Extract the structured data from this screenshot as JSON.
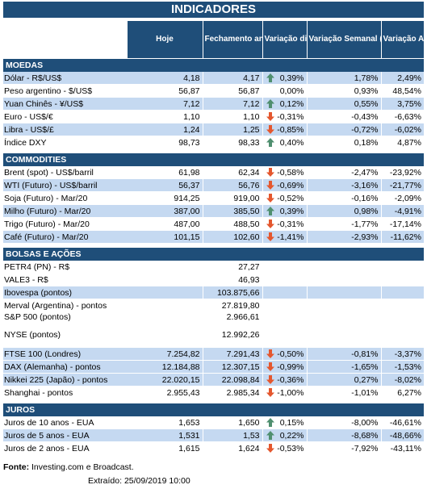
{
  "title": "INDICADORES",
  "header": {
    "hoje": "Hoje",
    "fechamento": "Fechamento anterior",
    "var_diaria": "Variação diária (%)",
    "var_semanal": "Variação Semanal (%)",
    "var_anual": "Variação Anual (%)"
  },
  "colors": {
    "header_bg": "#1f4e79",
    "row_alt": "#c5d9f1",
    "arrow_up": "#4f8f6f",
    "arrow_down": "#e4572e"
  },
  "sections": [
    {
      "name": "MOEDAS",
      "rows": [
        {
          "name": "Dólar - R$/US$",
          "hoje": "4,18",
          "fech": "4,17",
          "dir": "up",
          "vd": "0,39%",
          "vs": "1,78%",
          "va": "2,49%"
        },
        {
          "name": "Peso argentino - $/US$",
          "hoje": "56,87",
          "fech": "56,87",
          "dir": "",
          "vd": "0,00%",
          "vs": "0,93%",
          "va": "48,54%"
        },
        {
          "name": "Yuan Chinês - ¥/US$",
          "hoje": "7,12",
          "fech": "7,12",
          "dir": "up",
          "vd": "0,12%",
          "vs": "0,55%",
          "va": "3,75%"
        },
        {
          "name": "Euro - US$/€",
          "hoje": "1,10",
          "fech": "1,10",
          "dir": "down",
          "vd": "-0,31%",
          "vs": "-0,43%",
          "va": "-6,63%"
        },
        {
          "name": "Libra - US$/£",
          "hoje": "1,24",
          "fech": "1,25",
          "dir": "down",
          "vd": "-0,85%",
          "vs": "-0,72%",
          "va": "-6,02%"
        },
        {
          "name": "Índice DXY",
          "hoje": "98,73",
          "fech": "98,33",
          "dir": "up",
          "vd": "0,40%",
          "vs": "0,18%",
          "va": "4,87%"
        }
      ]
    },
    {
      "name": "COMMODITIES",
      "rows": [
        {
          "name": "Brent (spot) - US$/barril",
          "hoje": "61,98",
          "fech": "62,34",
          "dir": "down",
          "vd": "-0,58%",
          "vs": "-2,47%",
          "va": "-23,92%"
        },
        {
          "name": "WTI (Futuro) - US$/barril",
          "hoje": "56,37",
          "fech": "56,76",
          "dir": "down",
          "vd": "-0,69%",
          "vs": "-3,16%",
          "va": "-21,77%"
        },
        {
          "name": "Soja (Futuro) - Mar/20",
          "hoje": "914,25",
          "fech": "919,00",
          "dir": "down",
          "vd": "-0,52%",
          "vs": "-0,16%",
          "va": "-2,09%"
        },
        {
          "name": "Milho (Futuro) - Mar/20",
          "hoje": "387,00",
          "fech": "385,50",
          "dir": "up",
          "vd": "0,39%",
          "vs": "0,98%",
          "va": "-4,91%"
        },
        {
          "name": "Trigo (Futuro) - Mar/20",
          "hoje": "487,00",
          "fech": "488,50",
          "dir": "down",
          "vd": "-0,31%",
          "vs": "-1,77%",
          "va": "-17,14%"
        },
        {
          "name": "Café (Futuro) - Mar/20",
          "hoje": "101,15",
          "fech": "102,60",
          "dir": "down",
          "vd": "-1,41%",
          "vs": "-2,93%",
          "va": "-11,62%"
        }
      ]
    },
    {
      "name": "BOLSAS E AÇÕES",
      "rows": [
        {
          "name": "PETR4 (PN) - R$",
          "hoje": "",
          "fech": "27,27",
          "dir": "",
          "vd": "",
          "vs": "",
          "va": ""
        },
        {
          "name": "VALE3 - R$",
          "hoje": "",
          "fech": "46,93",
          "dir": "",
          "vd": "",
          "vs": "",
          "va": ""
        },
        {
          "name": "Ibovespa (pontos)",
          "hoje": "",
          "fech": "103.875,66",
          "dir": "",
          "vd": "",
          "vs": "",
          "va": ""
        },
        {
          "name": "Merval (Argentina) - pontos",
          "hoje": "",
          "fech": "27.819,80",
          "dir": "",
          "vd": "",
          "vs": "",
          "va": ""
        },
        {
          "name": "S&P 500 (pontos)",
          "hoje": "",
          "fech": "2.966,61",
          "dir": "",
          "vd": "",
          "vs": "",
          "va": "",
          "tall": true
        },
        {
          "name": "NYSE (pontos)",
          "hoje": "",
          "fech": "12.992,26",
          "dir": "",
          "vd": "",
          "vs": "",
          "va": "",
          "tall": true
        },
        {
          "name": "FTSE 100 (Londres)",
          "hoje": "7.254,82",
          "fech": "7.291,43",
          "dir": "down",
          "vd": "-0,50%",
          "vs": "-0,81%",
          "va": "-3,37%"
        },
        {
          "name": "DAX (Alemanha) - pontos",
          "hoje": "12.184,88",
          "fech": "12.307,15",
          "dir": "down",
          "vd": "-0,99%",
          "vs": "-1,65%",
          "va": "-1,53%"
        },
        {
          "name": "Nikkei 225 (Japão) - pontos",
          "hoje": "22.020,15",
          "fech": "22.098,84",
          "dir": "down",
          "vd": "-0,36%",
          "vs": "0,27%",
          "va": "-8,02%"
        },
        {
          "name": "Shanghai - pontos",
          "hoje": "2.955,43",
          "fech": "2.985,34",
          "dir": "down",
          "vd": "-1,00%",
          "vs": "-1,01%",
          "va": "6,27%"
        }
      ]
    },
    {
      "name": "JUROS",
      "rows": [
        {
          "name": "Juros de 10 anos - EUA",
          "hoje": "1,653",
          "fech": "1,650",
          "dir": "up",
          "vd": "0,15%",
          "vs": "-8,00%",
          "va": "-46,61%"
        },
        {
          "name": "Juros de 5 anos - EUA",
          "hoje": "1,531",
          "fech": "1,53",
          "dir": "up",
          "vd": "0,22%",
          "vs": "-8,68%",
          "va": "-48,66%"
        },
        {
          "name": "Juros de 2 anos - EUA",
          "hoje": "1,615",
          "fech": "1,624",
          "dir": "down",
          "vd": "-0,53%",
          "vs": "-7,92%",
          "va": "-43,11%"
        }
      ]
    }
  ],
  "footer": {
    "fonte_label": "Fonte:",
    "fonte_value": "Investing.com e Broadcast.",
    "extraido": "Extraído:   25/09/2019 10:00"
  }
}
